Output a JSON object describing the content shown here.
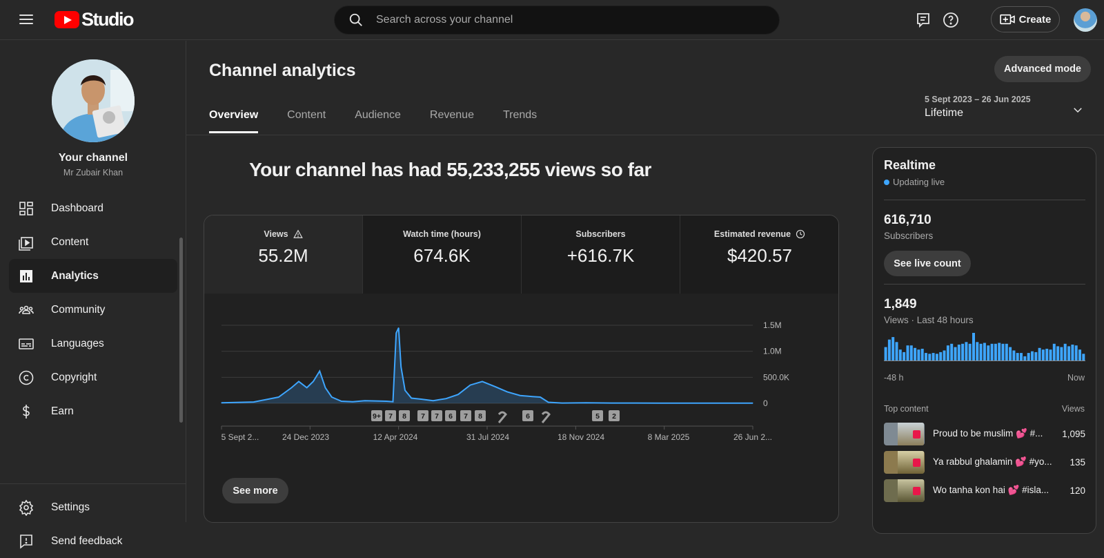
{
  "app": {
    "brand": "Studio",
    "accent": "#ff0000",
    "link": "#3ea6ff"
  },
  "search": {
    "placeholder": "Search across your channel"
  },
  "header": {
    "create_label": "Create"
  },
  "sidebar": {
    "channel_title": "Your channel",
    "channel_name": "Mr Zubair Khan",
    "items": [
      {
        "label": "Dashboard",
        "icon": "dashboard-icon"
      },
      {
        "label": "Content",
        "icon": "content-icon"
      },
      {
        "label": "Analytics",
        "icon": "analytics-icon",
        "active": true
      },
      {
        "label": "Community",
        "icon": "community-icon"
      },
      {
        "label": "Languages",
        "icon": "languages-icon"
      },
      {
        "label": "Copyright",
        "icon": "copyright-icon"
      },
      {
        "label": "Earn",
        "icon": "earn-icon"
      }
    ],
    "bottom_items": [
      {
        "label": "Settings",
        "icon": "settings-icon"
      },
      {
        "label": "Send feedback",
        "icon": "feedback-icon"
      }
    ]
  },
  "main": {
    "title": "Channel analytics",
    "advanced_mode": "Advanced mode",
    "tabs": [
      "Overview",
      "Content",
      "Audience",
      "Revenue",
      "Trends"
    ],
    "active_tab": "Overview",
    "range": {
      "dates": "5 Sept 2023 – 26 Jun 2025",
      "label": "Lifetime"
    },
    "headline": "Your channel has had 55,233,255 views so far",
    "metrics": [
      {
        "label": "Views",
        "value": "55.2M",
        "icon": "warning-icon"
      },
      {
        "label": "Watch time (hours)",
        "value": "674.6K"
      },
      {
        "label": "Subscribers",
        "value": "+616.7K"
      },
      {
        "label": "Estimated revenue",
        "value": "$420.57",
        "icon": "clock-icon"
      }
    ],
    "see_more": "See more"
  },
  "chart_data": {
    "type": "area",
    "series_color": "#3ea6ff",
    "y_ticks": [
      "0",
      "500.0K",
      "1.0M",
      "1.5M"
    ],
    "ylim": [
      0,
      1500000
    ],
    "x_ticks": [
      "5 Sept 2...",
      "24 Dec 2023",
      "12 Apr 2024",
      "31 Jul 2024",
      "18 Nov 2024",
      "8 Mar 2025",
      "26 Jun 2..."
    ],
    "x_points": [
      "2023-09-05",
      "2023-10-15",
      "2023-11-15",
      "2023-12-01",
      "2023-12-10",
      "2023-12-20",
      "2023-12-28",
      "2024-01-05",
      "2024-01-12",
      "2024-01-20",
      "2024-02-01",
      "2024-02-15",
      "2024-03-01",
      "2024-03-15",
      "2024-03-28",
      "2024-04-05",
      "2024-04-09",
      "2024-04-12",
      "2024-04-15",
      "2024-04-20",
      "2024-04-28",
      "2024-05-10",
      "2024-05-25",
      "2024-06-10",
      "2024-06-25",
      "2024-07-10",
      "2024-07-25",
      "2024-08-10",
      "2024-08-25",
      "2024-09-10",
      "2024-09-25",
      "2024-10-05",
      "2024-10-15",
      "2024-11-01",
      "2024-12-01",
      "2025-01-01",
      "2025-02-01",
      "2025-03-01",
      "2025-04-01",
      "2025-05-01",
      "2025-06-26"
    ],
    "values": [
      10000,
      25000,
      120000,
      300000,
      420000,
      300000,
      420000,
      620000,
      300000,
      120000,
      40000,
      30000,
      50000,
      45000,
      40000,
      30000,
      1350000,
      1450000,
      700000,
      250000,
      100000,
      80000,
      50000,
      90000,
      170000,
      350000,
      420000,
      320000,
      220000,
      150000,
      130000,
      120000,
      20000,
      5000,
      10000,
      5000,
      5000,
      4000,
      4000,
      4000,
      4000
    ],
    "markers": [
      "9+",
      "7",
      "8",
      "7",
      "7",
      "6",
      "7",
      "8",
      "",
      "6",
      "",
      "5",
      "2"
    ]
  },
  "realtime": {
    "title": "Realtime",
    "live_label": "Updating live",
    "subscribers": "616,710",
    "subscribers_label": "Subscribers",
    "see_live_count": "See live count",
    "views": "1,849",
    "views_label": "Views · Last 48 hours",
    "hourly_views": [
      16,
      25,
      28,
      22,
      13,
      10,
      18,
      18,
      15,
      13,
      14,
      9,
      8,
      9,
      8,
      10,
      12,
      18,
      20,
      16,
      19,
      20,
      22,
      20,
      33,
      22,
      20,
      21,
      18,
      20,
      20,
      21,
      20,
      20,
      16,
      12,
      9,
      9,
      5,
      9,
      11,
      10,
      15,
      13,
      14,
      13,
      20,
      17,
      16,
      20,
      17,
      19,
      18,
      13,
      8
    ],
    "axis_left": "-48 h",
    "axis_right": "Now",
    "top_content_label": "Top content",
    "views_col_label": "Views",
    "top_content": [
      {
        "title": "Proud to be muslim 💕 #...",
        "views": "1,095"
      },
      {
        "title": "Ya rabbul ghalamin 💕 #yo...",
        "views": "135"
      },
      {
        "title": "Wo tanha kon hai 💕 #isla...",
        "views": "120"
      }
    ]
  }
}
